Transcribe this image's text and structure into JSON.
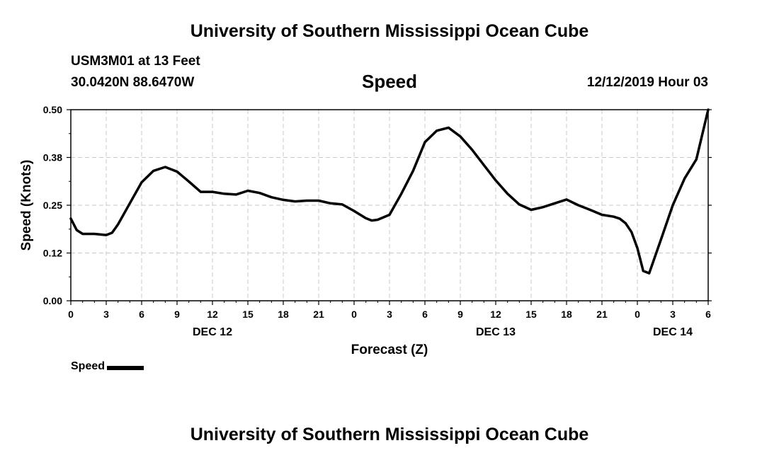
{
  "header": {
    "title": "University of Southern Mississippi Ocean Cube",
    "station": "USM3M01 at 13 Feet",
    "coordinates": "30.0420N 88.6470W",
    "variable": "Speed",
    "issued": "12/12/2019 Hour 03"
  },
  "footer": {
    "title": "University of Southern Mississippi Ocean Cube"
  },
  "legend": {
    "label": "Speed"
  },
  "colors": {
    "line": "#000000",
    "grid": "#c8c8c8"
  },
  "chart_data": {
    "type": "line",
    "title": "Speed",
    "xlabel": "Forecast (Z)",
    "ylabel": "Speed (Knots)",
    "x_unit": "hours from 0Z DEC 12",
    "xlim": [
      0,
      54
    ],
    "ylim": [
      0,
      0.5
    ],
    "yticks": [
      "0.00",
      "0.12",
      "0.25",
      "0.38",
      "0.50"
    ],
    "xticks": [
      {
        "x": 0,
        "label": "0"
      },
      {
        "x": 3,
        "label": "3"
      },
      {
        "x": 6,
        "label": "6"
      },
      {
        "x": 9,
        "label": "9"
      },
      {
        "x": 12,
        "label": "12"
      },
      {
        "x": 15,
        "label": "15"
      },
      {
        "x": 18,
        "label": "18"
      },
      {
        "x": 21,
        "label": "21"
      },
      {
        "x": 24,
        "label": "0"
      },
      {
        "x": 27,
        "label": "3"
      },
      {
        "x": 30,
        "label": "6"
      },
      {
        "x": 33,
        "label": "9"
      },
      {
        "x": 36,
        "label": "12"
      },
      {
        "x": 39,
        "label": "15"
      },
      {
        "x": 42,
        "label": "18"
      },
      {
        "x": 45,
        "label": "21"
      },
      {
        "x": 48,
        "label": "0"
      },
      {
        "x": 51,
        "label": "3"
      },
      {
        "x": 54,
        "label": "6"
      }
    ],
    "day_labels": [
      {
        "x": 12,
        "label": "DEC 12"
      },
      {
        "x": 36,
        "label": "DEC 13"
      },
      {
        "x": 51,
        "label": "DEC 14"
      }
    ],
    "grid": true,
    "legend_position": "bottom-left",
    "series": [
      {
        "name": "Speed",
        "x": [
          0,
          0.5,
          1,
          2,
          3,
          3.5,
          4,
          5,
          6,
          7,
          8,
          9,
          10,
          11,
          12,
          13,
          14,
          15,
          16,
          17,
          18,
          19,
          20,
          21,
          22,
          23,
          24,
          25,
          25.5,
          26,
          27,
          28,
          29,
          30,
          31,
          32,
          33,
          34,
          35,
          36,
          37,
          38,
          39,
          40,
          41,
          42,
          43,
          44,
          45,
          46,
          46.5,
          47,
          47.5,
          48,
          48.5,
          49,
          50,
          51,
          52,
          53,
          54
        ],
        "y": [
          0.215,
          0.185,
          0.175,
          0.175,
          0.172,
          0.178,
          0.2,
          0.255,
          0.31,
          0.34,
          0.35,
          0.338,
          0.312,
          0.285,
          0.285,
          0.28,
          0.278,
          0.288,
          0.282,
          0.271,
          0.264,
          0.26,
          0.262,
          0.262,
          0.255,
          0.252,
          0.235,
          0.216,
          0.21,
          0.212,
          0.225,
          0.28,
          0.34,
          0.415,
          0.445,
          0.453,
          0.43,
          0.395,
          0.355,
          0.315,
          0.28,
          0.252,
          0.238,
          0.245,
          0.255,
          0.265,
          0.25,
          0.238,
          0.225,
          0.22,
          0.215,
          0.203,
          0.18,
          0.138,
          0.078,
          0.072,
          0.16,
          0.25,
          0.32,
          0.37,
          0.5
        ]
      }
    ]
  }
}
